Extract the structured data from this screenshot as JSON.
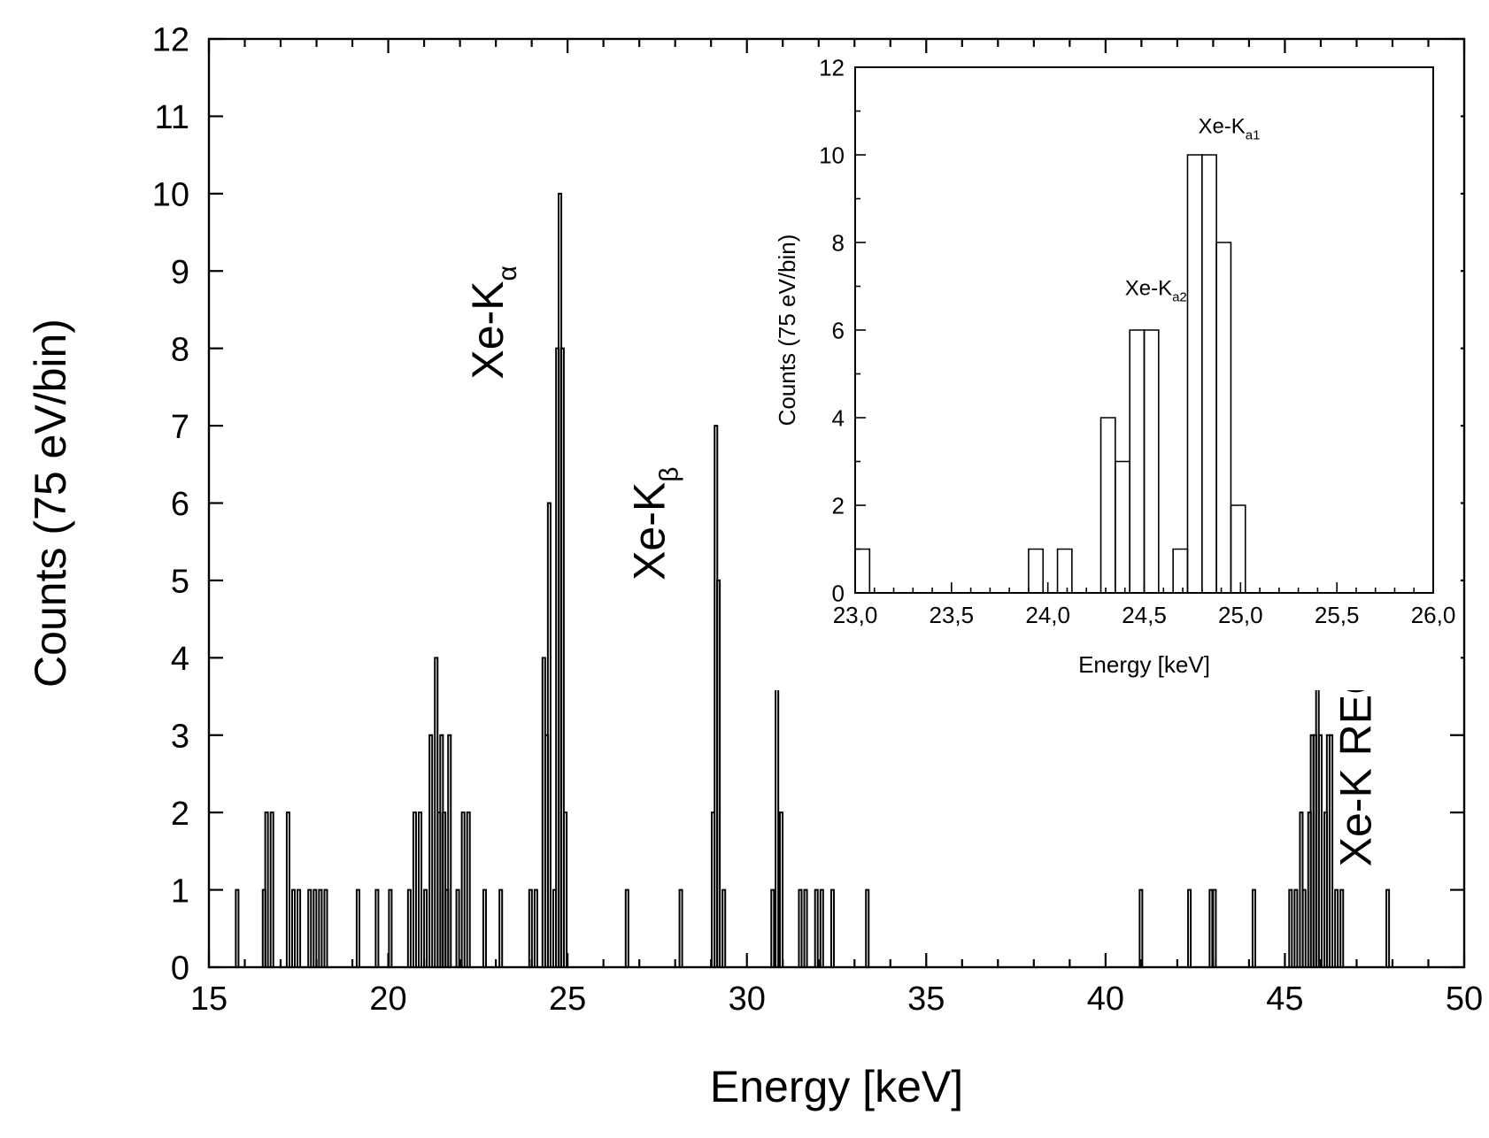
{
  "chart_data": [
    {
      "id": "main",
      "type": "histogram",
      "title": "",
      "xlabel": "Energy [keV]",
      "ylabel": "Counts (75 eV/bin)",
      "xlim": [
        15,
        50
      ],
      "ylim": [
        0,
        12
      ],
      "xticks": [
        15,
        20,
        25,
        30,
        35,
        40,
        45,
        50
      ],
      "yticks": [
        0,
        1,
        2,
        3,
        4,
        5,
        6,
        7,
        8,
        9,
        10,
        11,
        12
      ],
      "bin_width": 0.075,
      "grid": false,
      "bins": [
        [
          15.75,
          1
        ],
        [
          16.5,
          1
        ],
        [
          16.57,
          2
        ],
        [
          16.72,
          2
        ],
        [
          17.17,
          2
        ],
        [
          17.32,
          1
        ],
        [
          17.47,
          1
        ],
        [
          17.77,
          1
        ],
        [
          17.92,
          1
        ],
        [
          18.07,
          1
        ],
        [
          18.22,
          1
        ],
        [
          19.12,
          1
        ],
        [
          19.65,
          1
        ],
        [
          20.02,
          1
        ],
        [
          20.55,
          1
        ],
        [
          20.7,
          2
        ],
        [
          20.85,
          2
        ],
        [
          21.0,
          1
        ],
        [
          21.15,
          3
        ],
        [
          21.3,
          4
        ],
        [
          21.38,
          2
        ],
        [
          21.45,
          3
        ],
        [
          21.52,
          2
        ],
        [
          21.6,
          1
        ],
        [
          21.67,
          3
        ],
        [
          21.9,
          1
        ],
        [
          22.05,
          2
        ],
        [
          22.2,
          2
        ],
        [
          22.65,
          1
        ],
        [
          23.1,
          1
        ],
        [
          23.93,
          1
        ],
        [
          24.08,
          1
        ],
        [
          24.3,
          4
        ],
        [
          24.38,
          3
        ],
        [
          24.45,
          6
        ],
        [
          24.6,
          1
        ],
        [
          24.68,
          8
        ],
        [
          24.75,
          10
        ],
        [
          24.82,
          8
        ],
        [
          24.9,
          2
        ],
        [
          26.62,
          1
        ],
        [
          28.12,
          1
        ],
        [
          29.02,
          2
        ],
        [
          29.1,
          7
        ],
        [
          29.17,
          5
        ],
        [
          29.32,
          1
        ],
        [
          30.68,
          1
        ],
        [
          30.8,
          4
        ],
        [
          30.92,
          2
        ],
        [
          31.45,
          1
        ],
        [
          31.6,
          1
        ],
        [
          31.9,
          1
        ],
        [
          32.05,
          1
        ],
        [
          32.35,
          1
        ],
        [
          33.32,
          1
        ],
        [
          40.95,
          1
        ],
        [
          42.3,
          1
        ],
        [
          42.9,
          1
        ],
        [
          43.0,
          1
        ],
        [
          44.1,
          1
        ],
        [
          45.12,
          1
        ],
        [
          45.27,
          1
        ],
        [
          45.42,
          2
        ],
        [
          45.5,
          1
        ],
        [
          45.65,
          2
        ],
        [
          45.72,
          3
        ],
        [
          45.8,
          3
        ],
        [
          45.87,
          4
        ],
        [
          45.95,
          3
        ],
        [
          46.1,
          2
        ],
        [
          46.17,
          3
        ],
        [
          46.25,
          3
        ],
        [
          46.4,
          1
        ],
        [
          46.55,
          1
        ],
        [
          47.83,
          1
        ]
      ],
      "annotations": [
        {
          "text": "Xe-K",
          "sub": "α",
          "x": 23.2,
          "y": 7.6,
          "rotation": -90
        },
        {
          "text": "Xe-K",
          "sub": "β",
          "x": 27.7,
          "y": 5.0,
          "rotation": -90
        },
        {
          "text": "Xe-K REC",
          "sub": "",
          "x": 47.4,
          "y": 1.3,
          "rotation": -90
        }
      ]
    },
    {
      "id": "inset",
      "type": "histogram",
      "title": "",
      "xlabel": "Energy [keV]",
      "ylabel": "Counts (75 eV/bin)",
      "xlim": [
        23.0,
        26.0
      ],
      "ylim": [
        0,
        12
      ],
      "xticks": [
        23.0,
        23.5,
        24.0,
        24.5,
        25.0,
        25.5,
        26.0
      ],
      "xtick_labels": [
        "23,0",
        "23,5",
        "24,0",
        "24,5",
        "25,0",
        "25,5",
        "26,0"
      ],
      "yticks": [
        0,
        2,
        4,
        6,
        8,
        10,
        12
      ],
      "bin_width": 0.075,
      "grid": false,
      "bins": [
        [
          23.0,
          1
        ],
        [
          23.9,
          1
        ],
        [
          24.05,
          1
        ],
        [
          24.275,
          4
        ],
        [
          24.35,
          3
        ],
        [
          24.425,
          6
        ],
        [
          24.5,
          6
        ],
        [
          24.575,
          0
        ],
        [
          24.65,
          1
        ],
        [
          24.725,
          10
        ],
        [
          24.8,
          10
        ],
        [
          24.875,
          8
        ],
        [
          24.95,
          2
        ]
      ],
      "segments": [
        [
          23.0,
          1
        ],
        [
          23.075,
          1
        ],
        [
          23.9,
          1
        ],
        [
          23.975,
          1
        ],
        [
          24.05,
          1
        ],
        [
          24.125,
          1
        ],
        [
          24.275,
          4
        ],
        [
          24.35,
          4
        ],
        [
          24.35,
          3
        ],
        [
          24.425,
          3
        ],
        [
          24.425,
          6
        ],
        [
          24.575,
          6
        ],
        [
          24.575,
          1
        ],
        [
          24.65,
          1
        ],
        [
          24.65,
          8
        ],
        [
          24.725,
          8
        ],
        [
          24.725,
          10
        ],
        [
          24.8,
          10
        ],
        [
          24.8,
          8
        ],
        [
          24.875,
          8
        ],
        [
          24.95,
          2
        ]
      ],
      "annotations": [
        {
          "text": "Xe-K",
          "sub": "a1",
          "x": 24.78,
          "y": 10.5
        },
        {
          "text": "Xe-K",
          "sub": "a2",
          "x": 24.4,
          "y": 6.8
        }
      ]
    }
  ]
}
